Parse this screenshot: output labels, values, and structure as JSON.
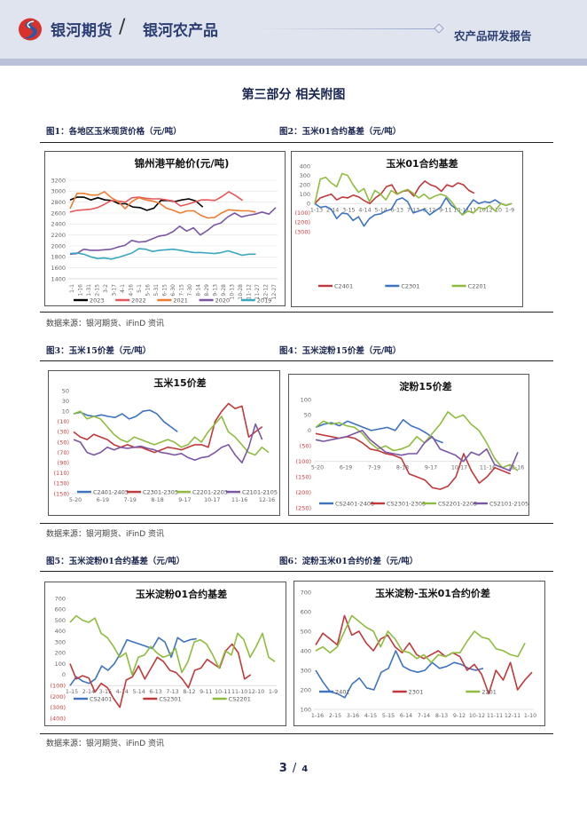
{
  "header": {
    "brand": "银河期货",
    "separator": "/",
    "sub_brand": "银河农产品",
    "report_type": "农产品研发报告",
    "colors": {
      "brand": "#2c3e73",
      "logo_red": "#d9312b",
      "logo_blue": "#2a59a8"
    }
  },
  "section_title": "第三部分 相关附图",
  "figures": {
    "fig1_caption": "图1：各地区玉米现货价格（元/吨）",
    "fig2_caption": "图2：玉米01合约基差（元/吨）",
    "fig3_caption": "图3：玉米15价差（元/吨）",
    "fig4_caption": "图4：玉米淀粉15价差（元/吨）",
    "fig5_caption": "图5：玉米淀粉01合约基差（元/吨）",
    "fig6_caption": "图6：淀粉玉米01合约价差（元/吨）"
  },
  "sources": {
    "row1": "数据来源：银河期货、iFinD 资讯",
    "row2": "数据来源：银河期货、iFinD 资讯",
    "row3": "数据来源：银河期货、iFinD 资讯"
  },
  "page": {
    "current": "3",
    "separator": "/",
    "total": "4"
  },
  "chart_data": [
    {
      "id": "c1",
      "type": "line",
      "title": "锦州港平舱价(元/吨)",
      "ylim": [
        1400,
        3200
      ],
      "yticks": [
        "3200",
        "3000",
        "2800",
        "2600",
        "2400",
        "2200",
        "2000",
        "1800",
        "1600",
        "1400"
      ],
      "ytick_values": [
        3200,
        3000,
        2800,
        2600,
        2400,
        2200,
        2000,
        1800,
        1600,
        1400
      ],
      "negative_ticks_red": false,
      "xticks": [
        "1-1",
        "1-16",
        "1-31",
        "2-15",
        "3-2",
        "3-17",
        "4-1",
        "4-16",
        "5-1",
        "5-16",
        "5-31",
        "6-15",
        "6-30",
        "7-15",
        "7-30",
        "8-14",
        "8-29",
        "9-13",
        "9-28",
        "10-13",
        "10-28",
        "11-12",
        "11-27",
        "12-12",
        "12-27"
      ],
      "x_rotated": true,
      "xaxis_at": 1400,
      "series": [
        {
          "name": "2023",
          "color": "#000000",
          "values": [
            2840,
            2890,
            2890,
            2840,
            2880,
            2840,
            2830,
            2770,
            2770,
            2710,
            2700,
            2650,
            2690,
            2830,
            2830,
            2810,
            2840,
            2860,
            2820,
            2710
          ]
        },
        {
          "name": "2022",
          "color": "#e8585a",
          "values": [
            2620,
            2650,
            2660,
            2670,
            2700,
            2760,
            2830,
            2820,
            2800,
            2880,
            2890,
            2870,
            2860,
            2860,
            2840,
            2820,
            2730,
            2760,
            2800,
            2840,
            2840,
            2830,
            2900,
            2990,
            2920,
            2830
          ]
        },
        {
          "name": "2021",
          "color": "#ed7d31",
          "values": [
            2680,
            2960,
            2960,
            2930,
            2930,
            2990,
            2880,
            2810,
            2680,
            2810,
            2880,
            2840,
            2820,
            2780,
            2690,
            2650,
            2600,
            2640,
            2640,
            2560,
            2510,
            2520,
            2600,
            2660,
            2650,
            2640,
            2640,
            2620
          ]
        },
        {
          "name": "2020",
          "color": "#7b56a3",
          "values": [
            1850,
            1860,
            1940,
            1920,
            1920,
            1930,
            1940,
            1980,
            2010,
            2100,
            2070,
            2080,
            2130,
            2180,
            2200,
            2260,
            2360,
            2270,
            2330,
            2200,
            2280,
            2380,
            2420,
            2530,
            2600,
            2530,
            2560,
            2580,
            2620,
            2580,
            2700
          ]
        },
        {
          "name": "2019",
          "color": "#3aa7bf",
          "values": [
            1860,
            1870,
            1850,
            1800,
            1770,
            1780,
            1760,
            1790,
            1830,
            1870,
            1950,
            1940,
            1900,
            1920,
            1930,
            1940,
            1920,
            1900,
            1880,
            1880,
            1870,
            1860,
            1880,
            1910,
            1870,
            1830,
            1850,
            1850
          ]
        }
      ],
      "legend": "bottom"
    },
    {
      "id": "c2",
      "type": "line",
      "title": "玉米01合约基差",
      "ylim": [
        -300,
        400
      ],
      "yticks": [
        "400",
        "300",
        "200",
        "100",
        "0",
        "(100)",
        "(200)",
        "(300)"
      ],
      "ytick_values": [
        400,
        300,
        200,
        100,
        0,
        -100,
        -200,
        -300
      ],
      "negative_ticks_red": true,
      "xticks": [
        "1-13",
        "2-14",
        "3-15",
        "4-14",
        "5-14",
        "6-13",
        "7-13",
        "8-12",
        "9-11",
        "10-11",
        "11-10",
        "12-10",
        "1-9"
      ],
      "xaxis_at": 0,
      "series": [
        {
          "name": "C2401",
          "color": "#c0393b",
          "values": [
            0,
            60,
            80,
            100,
            40,
            70,
            60,
            90,
            70,
            30,
            0,
            60,
            100,
            180,
            200,
            100,
            130,
            140,
            80,
            180,
            240,
            200,
            180,
            130,
            200,
            180,
            220,
            200,
            140,
            110
          ]
        },
        {
          "name": "C2301",
          "color": "#3e73bf",
          "values": [
            0,
            -40,
            -30,
            -60,
            -160,
            -100,
            -110,
            -180,
            -140,
            -240,
            -160,
            -120,
            -110,
            -80,
            -60,
            40,
            60,
            20,
            -100,
            -80,
            -60,
            -120,
            -80,
            -40,
            60,
            -20,
            -60,
            -120,
            -40,
            40,
            0,
            20,
            10,
            40,
            0,
            -20,
            0
          ]
        },
        {
          "name": "C2201",
          "color": "#8fbc3f",
          "values": [
            0,
            260,
            280,
            220,
            180,
            320,
            300,
            200,
            120,
            160,
            20,
            140,
            100,
            40,
            140,
            100,
            130,
            150,
            110,
            60,
            100,
            50,
            80,
            100,
            80,
            20,
            -60,
            -120,
            -80,
            -100,
            -40,
            -60,
            -20,
            -80,
            0,
            -20,
            0
          ]
        }
      ],
      "legend": "bottom"
    },
    {
      "id": "c3",
      "type": "line",
      "title": "玉米15价差",
      "ylim": [
        -150,
        50
      ],
      "yticks": [
        "50",
        "30",
        "10",
        "(10)",
        "(30)",
        "(50)",
        "(70)",
        "(90)",
        "(110)",
        "(130)",
        "(150)"
      ],
      "ytick_values": [
        50,
        30,
        10,
        -10,
        -30,
        -50,
        -70,
        -90,
        -110,
        -130,
        -150
      ],
      "negative_ticks_red": true,
      "xticks": [
        "5-20",
        "6-19",
        "7-19",
        "8-18",
        "9-17",
        "10-17",
        "11-16",
        "12-16"
      ],
      "xaxis_at": -150,
      "series": [
        {
          "name": "C2401-2405",
          "color": "#3e73bf",
          "values": [
            5,
            8,
            2,
            0,
            3,
            0,
            -2,
            5,
            -5,
            0,
            10,
            12,
            5,
            -10,
            -20,
            -30
          ]
        },
        {
          "name": "C2301-2305",
          "color": "#c0393b",
          "values": [
            -30,
            -40,
            -45,
            -35,
            -40,
            -45,
            -55,
            -60,
            -55,
            -60,
            -60,
            -65,
            -70,
            -65,
            -60,
            -62,
            -65,
            -60,
            -55,
            -55,
            -60,
            -10,
            10,
            25,
            15,
            20,
            -40,
            -30,
            -20
          ]
        },
        {
          "name": "C2201-2205",
          "color": "#8fbc3f",
          "values": [
            5,
            10,
            -5,
            0,
            -5,
            -20,
            -35,
            -45,
            -50,
            -40,
            -45,
            -50,
            -55,
            -50,
            -45,
            -50,
            -60,
            -55,
            -40,
            -50,
            -30,
            -15,
            0,
            -30,
            -40,
            -55,
            -70,
            -75,
            -60,
            -70
          ]
        },
        {
          "name": "C2101-2105",
          "color": "#7b56a3",
          "values": [
            -45,
            -50,
            -70,
            -75,
            -70,
            -60,
            -65,
            -60,
            -62,
            -60,
            -58,
            -62,
            -65,
            -70,
            -72,
            -75,
            -72,
            -80,
            -85,
            -80,
            -78,
            -70,
            -60,
            -55,
            -75,
            -90,
            -60,
            -15,
            -45
          ]
        }
      ],
      "legend": "bottom"
    },
    {
      "id": "c4",
      "type": "line",
      "title": "淀粉15价差",
      "ylim": [
        -250,
        100
      ],
      "yticks": [
        "100",
        "50",
        "0",
        "(50)",
        "(100)",
        "(150)",
        "(200)",
        "(250)"
      ],
      "ytick_values": [
        100,
        50,
        0,
        -50,
        -100,
        -150,
        -200,
        -250
      ],
      "negative_ticks_red": true,
      "xticks": [
        "5-20",
        "6-19",
        "7-19",
        "8-18",
        "9-17",
        "10-17",
        "11-16",
        "12-16"
      ],
      "xaxis_at": -100,
      "series": [
        {
          "name": "CS2401-2405",
          "color": "#3e73bf",
          "values": [
            10,
            20,
            25,
            15,
            30,
            20,
            10,
            0,
            5,
            10,
            0,
            35,
            15,
            5,
            -10,
            -30,
            -40
          ]
        },
        {
          "name": "CS2301-2305",
          "color": "#c0393b",
          "values": [
            -10,
            -15,
            -20,
            -25,
            -20,
            -25,
            -40,
            -60,
            -65,
            -75,
            -80,
            -90,
            -140,
            -150,
            -160,
            -185,
            -190,
            -180,
            -150,
            -75,
            -130,
            -170,
            -150,
            -120,
            -130,
            -140
          ]
        },
        {
          "name": "CS2201-2205",
          "color": "#8fbc3f",
          "values": [
            10,
            30,
            20,
            25,
            15,
            10,
            -10,
            -40,
            -60,
            -50,
            -65,
            -60,
            -50,
            -20,
            -40,
            -10,
            20,
            60,
            40,
            50,
            20,
            0,
            -40,
            -90,
            -120,
            -110,
            -130
          ]
        },
        {
          "name": "CS2101-2105",
          "color": "#7b56a3",
          "values": [
            -30,
            -35,
            -30,
            -25,
            -20,
            -10,
            0,
            -30,
            -50,
            -70,
            -75,
            -80,
            -75,
            -75,
            -40,
            -20,
            -60,
            -70,
            -80,
            -100,
            -70,
            -80,
            -60,
            -110,
            -120,
            -130,
            -70
          ]
        }
      ],
      "legend": "bottom"
    },
    {
      "id": "c5",
      "type": "line",
      "title": "玉米淀粉01合约基差",
      "ylim": [
        -400,
        700
      ],
      "yticks": [
        "700",
        "600",
        "500",
        "400",
        "300",
        "200",
        "100",
        "0",
        "(100)",
        "(200)",
        "(300)",
        "(400)"
      ],
      "ytick_values": [
        700,
        600,
        500,
        400,
        300,
        200,
        100,
        0,
        -100,
        -200,
        -300,
        -400
      ],
      "negative_ticks_red": true,
      "xticks": [
        "1-15",
        "2-14",
        "3-15",
        "4-14",
        "5-14",
        "6-13",
        "7-13",
        "8-12",
        "9-11",
        "10-11",
        "11-10",
        "12-10",
        "1-9"
      ],
      "xaxis_at": -100,
      "series": [
        {
          "name": "CS2401",
          "color": "#3e73bf",
          "values": [
            -100,
            -20,
            -60,
            -80,
            -40,
            80,
            40,
            100,
            200,
            320,
            300,
            280,
            260,
            240,
            340,
            300,
            160,
            340,
            300,
            320,
            330
          ]
        },
        {
          "name": "CS2301",
          "color": "#c0393b",
          "values": [
            100,
            -40,
            -10,
            -30,
            -160,
            -80,
            -120,
            -220,
            -300,
            -50,
            -20,
            80,
            -40,
            60,
            160,
            120,
            40,
            20,
            -40,
            -120,
            40,
            60,
            140,
            100,
            60,
            220,
            280,
            200,
            -40,
            0
          ]
        },
        {
          "name": "CS2201",
          "color": "#8fbc3f",
          "values": [
            480,
            540,
            500,
            480,
            520,
            380,
            340,
            260,
            160,
            200,
            0,
            160,
            180,
            260,
            200,
            160,
            180,
            240,
            20,
            120,
            300,
            320,
            280,
            180,
            60,
            220,
            180,
            380,
            320,
            160,
            260,
            380,
            160,
            120
          ]
        }
      ],
      "legend": "bottom"
    },
    {
      "id": "c6",
      "type": "line",
      "title": "玉米淀粉-玉米01合约价差",
      "ylim": [
        100,
        700
      ],
      "yticks": [
        "700",
        "600",
        "500",
        "400",
        "300",
        "200",
        "100"
      ],
      "ytick_values": [
        700,
        600,
        500,
        400,
        300,
        200,
        100
      ],
      "negative_ticks_red": false,
      "xticks": [
        "1-16",
        "2-15",
        "3-16",
        "4-15",
        "5-15",
        "6-14",
        "7-14",
        "8-13",
        "9-12",
        "10-12",
        "11-11",
        "12-11",
        "1-10"
      ],
      "xaxis_at": 100,
      "series": [
        {
          "name": "2401",
          "color": "#3e73bf",
          "values": [
            300,
            240,
            190,
            180,
            160,
            230,
            260,
            210,
            200,
            290,
            310,
            400,
            320,
            300,
            290,
            300,
            340,
            310,
            320,
            340,
            330,
            310,
            300,
            310
          ]
        },
        {
          "name": "2301",
          "color": "#c0393b",
          "values": [
            430,
            490,
            460,
            430,
            580,
            480,
            500,
            440,
            400,
            460,
            480,
            420,
            390,
            440,
            380,
            360,
            380,
            400,
            370,
            390,
            370,
            300,
            330,
            280,
            180,
            300,
            250,
            340,
            200,
            250,
            290
          ]
        },
        {
          "name": "2201",
          "color": "#8fbc3f",
          "values": [
            400,
            420,
            390,
            420,
            500,
            580,
            550,
            520,
            500,
            420,
            500,
            460,
            400,
            390,
            360,
            380,
            340,
            380,
            370,
            390,
            390,
            450,
            500,
            470,
            460,
            410,
            400,
            380,
            370,
            440
          ]
        }
      ],
      "legend": "bottom"
    }
  ]
}
